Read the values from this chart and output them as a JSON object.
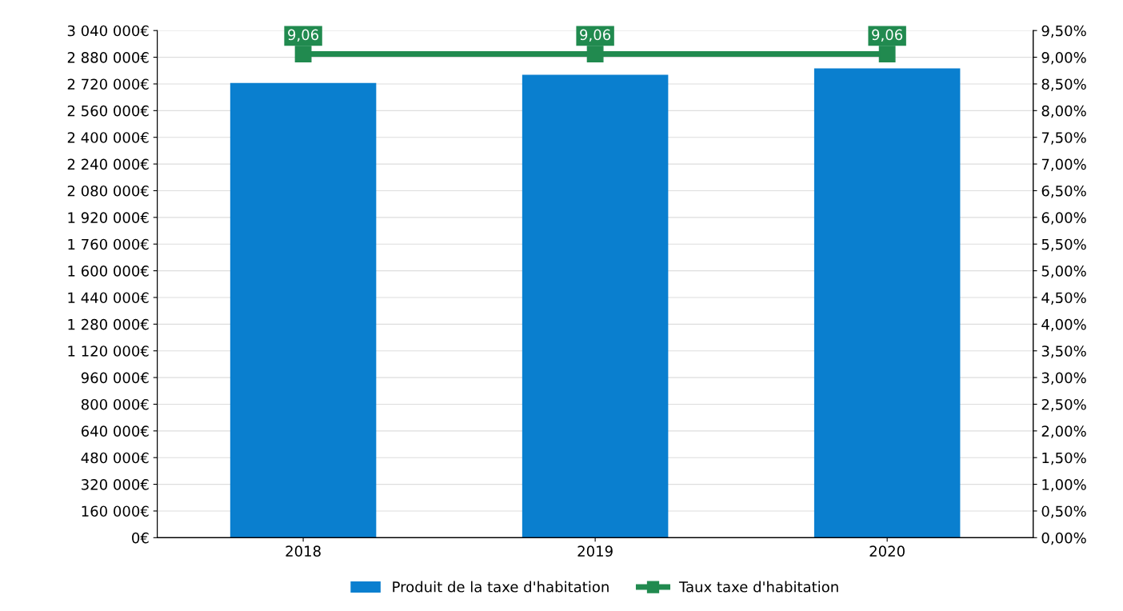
{
  "chart_data": {
    "type": "bar",
    "categories": [
      "2018",
      "2019",
      "2020"
    ],
    "series": [
      {
        "name": "Produit de la taxe d'habitation",
        "color": "#0a7fcf",
        "values": [
          2726000,
          2775000,
          2813000
        ]
      },
      {
        "name": "Taux taxe d'habitation",
        "type": "line",
        "axis": "y2",
        "color": "#218a4f",
        "marker": "square",
        "values": [
          9.06,
          9.06,
          9.06
        ],
        "value_labels": [
          "9,06",
          "9,06",
          "9,06"
        ]
      }
    ],
    "ylim": [
      0,
      3040000
    ],
    "yticks": [
      {
        "value": 0,
        "label": "0€"
      },
      {
        "value": 160000,
        "label": "160 000€"
      },
      {
        "value": 320000,
        "label": "320 000€"
      },
      {
        "value": 480000,
        "label": "480 000€"
      },
      {
        "value": 640000,
        "label": "640 000€"
      },
      {
        "value": 800000,
        "label": "800 000€"
      },
      {
        "value": 960000,
        "label": "960 000€"
      },
      {
        "value": 1120000,
        "label": "1 120 000€"
      },
      {
        "value": 1280000,
        "label": "1 280 000€"
      },
      {
        "value": 1440000,
        "label": "1 440 000€"
      },
      {
        "value": 1600000,
        "label": "1 600 000€"
      },
      {
        "value": 1760000,
        "label": "1 760 000€"
      },
      {
        "value": 1920000,
        "label": "1 920 000€"
      },
      {
        "value": 2080000,
        "label": "2 080 000€"
      },
      {
        "value": 2240000,
        "label": "2 240 000€"
      },
      {
        "value": 2400000,
        "label": "2 400 000€"
      },
      {
        "value": 2560000,
        "label": "2 560 000€"
      },
      {
        "value": 2720000,
        "label": "2 720 000€"
      },
      {
        "value": 2880000,
        "label": "2 880 000€"
      },
      {
        "value": 3040000,
        "label": "3 040 000€"
      }
    ],
    "y2lim": [
      0,
      9.5
    ],
    "y2ticks": [
      {
        "value": 0,
        "label": "0,00%"
      },
      {
        "value": 0.5,
        "label": "0,50%"
      },
      {
        "value": 1,
        "label": "1,00%"
      },
      {
        "value": 1.5,
        "label": "1,50%"
      },
      {
        "value": 2,
        "label": "2,00%"
      },
      {
        "value": 2.5,
        "label": "2,50%"
      },
      {
        "value": 3,
        "label": "3,00%"
      },
      {
        "value": 3.5,
        "label": "3,50%"
      },
      {
        "value": 4,
        "label": "4,00%"
      },
      {
        "value": 4.5,
        "label": "4,50%"
      },
      {
        "value": 5,
        "label": "5,00%"
      },
      {
        "value": 5.5,
        "label": "5,50%"
      },
      {
        "value": 6,
        "label": "6,00%"
      },
      {
        "value": 6.5,
        "label": "6,50%"
      },
      {
        "value": 7,
        "label": "7,00%"
      },
      {
        "value": 7.5,
        "label": "7,50%"
      },
      {
        "value": 8,
        "label": "8,00%"
      },
      {
        "value": 8.5,
        "label": "8,50%"
      },
      {
        "value": 9,
        "label": "9,00%"
      },
      {
        "value": 9.5,
        "label": "9,50%"
      }
    ],
    "grid": "y",
    "legend": "bottom"
  }
}
